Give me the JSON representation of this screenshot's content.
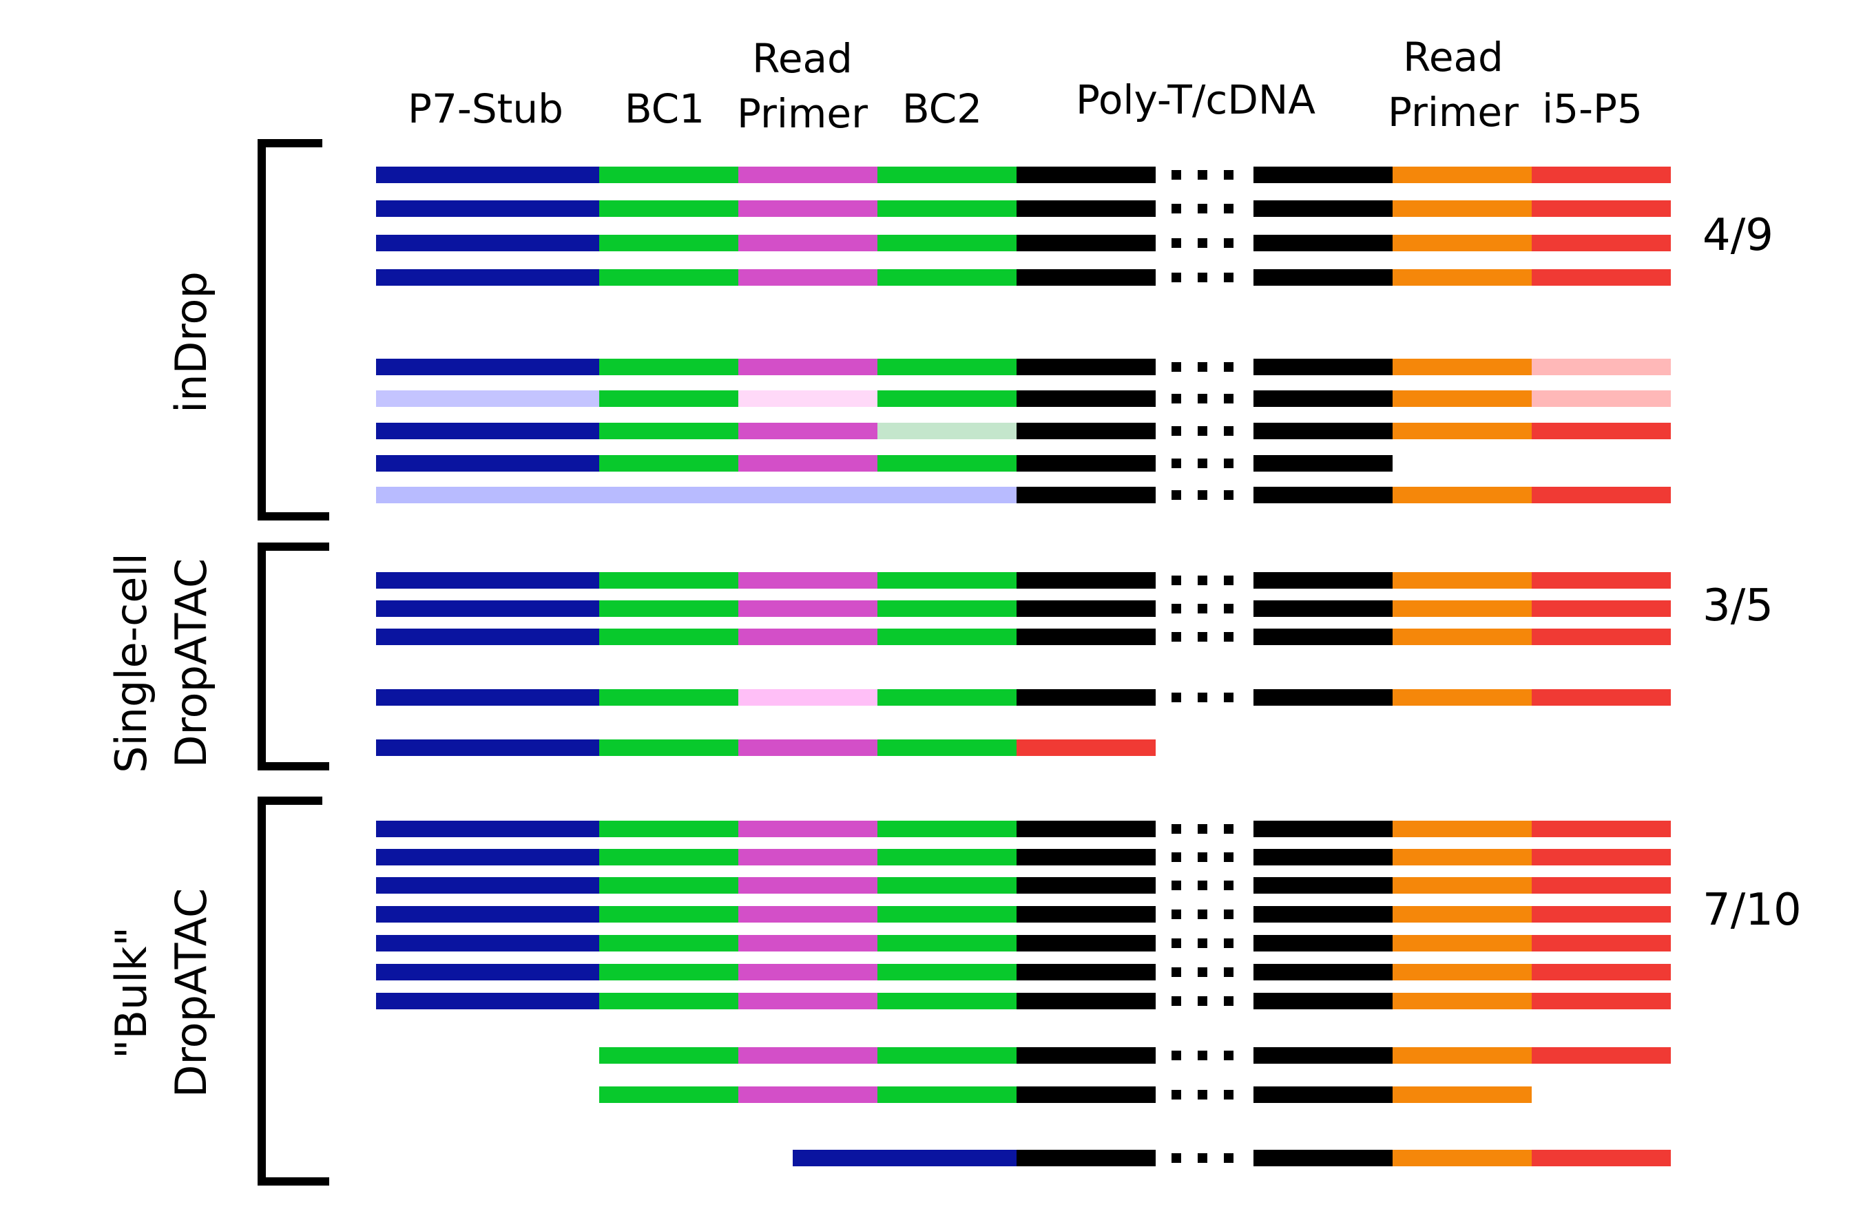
{
  "headers": {
    "p7_stub": "P7-Stub",
    "bc1": "BC1",
    "read_primer_1": [
      "Read",
      "Primer"
    ],
    "bc2": "BC2",
    "polyt_cdna": "Poly-T/cDNA",
    "read_primer_2": [
      "Read",
      "Primer"
    ],
    "i5_p5": "i5-P5"
  },
  "groups": [
    {
      "id": "indrop",
      "label_lines": [
        "inDrop"
      ],
      "count": "4/9"
    },
    {
      "id": "single-cell-dropatac",
      "label_lines": [
        "Single-cell",
        "DropATAC"
      ],
      "count": "3/5"
    },
    {
      "id": "bulk-dropatac",
      "label_lines": [
        "\"Bulk\"",
        "DropATAC"
      ],
      "count": "7/10"
    }
  ],
  "colors": {
    "navy": "#0a14a0",
    "navy_faded": "#c4c4ff",
    "navy_faded2": "#b8bbff",
    "green": "#08c92c",
    "green_faded": "#c4e6cc",
    "magenta": "#d34fc8",
    "magenta_faded": "#ffd9f8",
    "magenta_faded2": "#ffbff7",
    "black": "#000000",
    "orange": "#f5870a",
    "red": "#f03a34",
    "red_faded": "#ffb8b8"
  },
  "rows": [
    {
      "group": "indrop",
      "segments": [
        "navy",
        "green",
        "magenta",
        "green",
        "black",
        "dots",
        "black",
        "orange",
        "red"
      ]
    },
    {
      "group": "indrop",
      "segments": [
        "navy",
        "green",
        "magenta",
        "green",
        "black",
        "dots",
        "black",
        "orange",
        "red"
      ]
    },
    {
      "group": "indrop",
      "segments": [
        "navy",
        "green",
        "magenta",
        "green",
        "black",
        "dots",
        "black",
        "orange",
        "red"
      ]
    },
    {
      "group": "indrop",
      "segments": [
        "navy",
        "green",
        "magenta",
        "green",
        "black",
        "dots",
        "black",
        "orange",
        "red"
      ]
    },
    {
      "group": "indrop",
      "segments": [
        "navy",
        "green",
        "magenta",
        "green",
        "black",
        "dots",
        "black",
        "orange",
        "red_faded"
      ]
    },
    {
      "group": "indrop",
      "segments": [
        "navy_faded",
        "green",
        "magenta_faded",
        "green",
        "black",
        "dots",
        "black",
        "orange",
        "red_faded"
      ]
    },
    {
      "group": "indrop",
      "segments": [
        "navy",
        "green",
        "magenta",
        "green_faded",
        "black",
        "dots",
        "black",
        "orange",
        "red"
      ]
    },
    {
      "group": "indrop",
      "segments": [
        "navy",
        "green",
        "magenta",
        "green",
        "black",
        "dots",
        "black",
        null,
        null
      ]
    },
    {
      "group": "indrop",
      "segments": [
        "navy_faded2",
        "navy_faded2",
        "navy_faded2",
        "navy_faded2",
        "black",
        "dots",
        "black",
        "orange",
        "red"
      ]
    },
    {
      "group": "single-cell-dropatac",
      "segments": [
        "navy",
        "green",
        "magenta",
        "green",
        "black",
        "dots",
        "black",
        "orange",
        "red"
      ]
    },
    {
      "group": "single-cell-dropatac",
      "segments": [
        "navy",
        "green",
        "magenta",
        "green",
        "black",
        "dots",
        "black",
        "orange",
        "red"
      ]
    },
    {
      "group": "single-cell-dropatac",
      "segments": [
        "navy",
        "green",
        "magenta",
        "green",
        "black",
        "dots",
        "black",
        "orange",
        "red"
      ]
    },
    {
      "group": "single-cell-dropatac",
      "segments": [
        "navy",
        "green",
        "magenta_faded2",
        "green",
        "black",
        "dots",
        "black",
        "orange",
        "red"
      ]
    },
    {
      "group": "single-cell-dropatac",
      "segments": [
        "navy",
        "green",
        "magenta",
        "green",
        "red",
        null,
        null,
        null,
        null
      ]
    },
    {
      "group": "bulk-dropatac",
      "segments": [
        "navy",
        "green",
        "magenta",
        "green",
        "black",
        "dots",
        "black",
        "orange",
        "red"
      ]
    },
    {
      "group": "bulk-dropatac",
      "segments": [
        "navy",
        "green",
        "magenta",
        "green",
        "black",
        "dots",
        "black",
        "orange",
        "red"
      ]
    },
    {
      "group": "bulk-dropatac",
      "segments": [
        "navy",
        "green",
        "magenta",
        "green",
        "black",
        "dots",
        "black",
        "orange",
        "red"
      ]
    },
    {
      "group": "bulk-dropatac",
      "segments": [
        "navy",
        "green",
        "magenta",
        "green",
        "black",
        "dots",
        "black",
        "orange",
        "red"
      ]
    },
    {
      "group": "bulk-dropatac",
      "segments": [
        "navy",
        "green",
        "magenta",
        "green",
        "black",
        "dots",
        "black",
        "orange",
        "red"
      ]
    },
    {
      "group": "bulk-dropatac",
      "segments": [
        "navy",
        "green",
        "magenta",
        "green",
        "black",
        "dots",
        "black",
        "orange",
        "red"
      ]
    },
    {
      "group": "bulk-dropatac",
      "segments": [
        "navy",
        "green",
        "magenta",
        "green",
        "black",
        "dots",
        "black",
        "orange",
        "red"
      ]
    },
    {
      "group": "bulk-dropatac",
      "segments": [
        null,
        "green",
        "magenta",
        "green",
        "black",
        "dots",
        "black",
        "orange",
        "red"
      ]
    },
    {
      "group": "bulk-dropatac",
      "segments": [
        null,
        "green",
        "magenta",
        "green",
        "black",
        "dots",
        "black",
        "orange",
        null
      ]
    },
    {
      "group": "bulk-dropatac",
      "segments": [
        "partial_navy",
        "partial_navy",
        "partial_navy",
        "navy",
        "black",
        "dots",
        "black",
        "orange",
        "red"
      ]
    }
  ]
}
